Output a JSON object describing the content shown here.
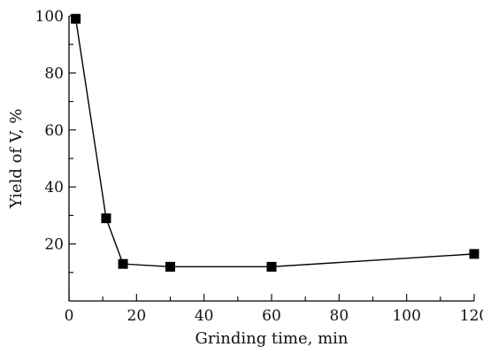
{
  "chart_data": {
    "type": "line",
    "xlabel": "Grinding time, min",
    "ylabel": "Yield of V, %",
    "xlim": [
      0,
      120
    ],
    "ylim": [
      0,
      100
    ],
    "x_ticks": [
      0,
      20,
      40,
      60,
      80,
      100,
      120
    ],
    "y_ticks": [
      20,
      40,
      60,
      80,
      100
    ],
    "grid": false,
    "marker": "square",
    "colors": {
      "line": "#000000",
      "marker": "#000000"
    },
    "series": [
      {
        "x": [
          2,
          11,
          16,
          30,
          60,
          120
        ],
        "y": [
          99,
          29,
          13,
          12,
          12,
          16.5
        ]
      }
    ]
  }
}
